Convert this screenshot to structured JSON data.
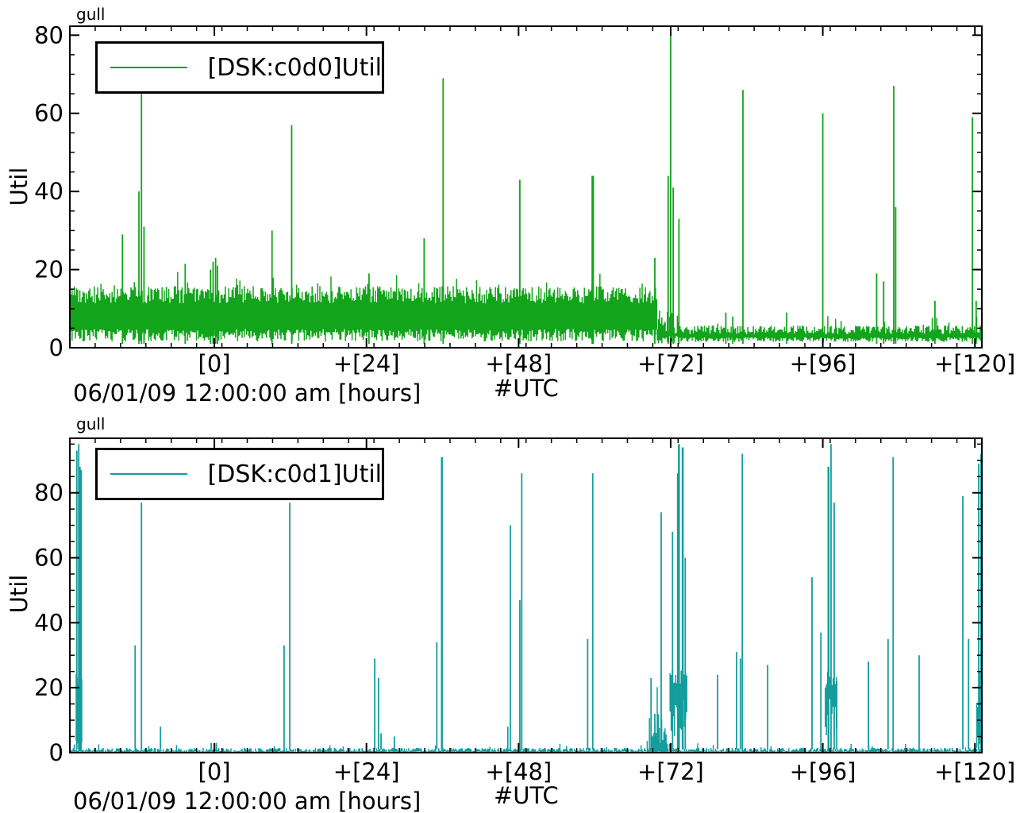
{
  "page": {
    "background": "#ffffff"
  },
  "chart_data": [
    {
      "type": "line",
      "title": "gull",
      "legend": "[DSK:c0d0]Util",
      "ylabel": "Util",
      "xlabel_utc": "#UTC",
      "xlabel_time": "06/01/09 12:00:00 am [hours]",
      "color": "#12a41b",
      "xlim": [
        -22.8,
        121.1
      ],
      "ylim": [
        0,
        82.3
      ],
      "xticks": [
        {
          "v": 0,
          "label": "[0]"
        },
        {
          "v": 24,
          "label": "+[24]"
        },
        {
          "v": 48,
          "label": "+[48]"
        },
        {
          "v": 72,
          "label": "+[72]"
        },
        {
          "v": 96,
          "label": "+[96]"
        },
        {
          "v": 120,
          "label": "+[120]"
        }
      ],
      "yticks": [
        {
          "v": 0,
          "label": "0"
        },
        {
          "v": 20,
          "label": "20"
        },
        {
          "v": 40,
          "label": "40"
        },
        {
          "v": 60,
          "label": "60"
        },
        {
          "v": 80,
          "label": "80"
        }
      ],
      "minor_y_step": 5,
      "bands": [
        {
          "x0": -22.8,
          "x1": 69.9,
          "lo": 3.2,
          "loVar": 1.6,
          "hi": 13.6,
          "hiVar": 2.2,
          "fringeP": 0.06,
          "fringeAmp": 4.5
        },
        {
          "x0": 69.9,
          "x1": 73.3,
          "lo": 2.2,
          "loVar": 1.2,
          "hi": 6.0,
          "hiVar": 3.5,
          "fringeP": 0.1,
          "fringeAmp": 5.0
        },
        {
          "x0": 73.3,
          "x1": 121.1,
          "lo": 2.1,
          "loVar": 0.6,
          "hi": 4.6,
          "hiVar": 1.1,
          "fringeP": 0.05,
          "fringeAmp": 3.5
        }
      ],
      "spikes": [
        [
          -14.5,
          29
        ],
        [
          -11.9,
          40
        ],
        [
          -11.5,
          65
        ],
        [
          -11.1,
          31
        ],
        [
          -4.6,
          21.5
        ],
        [
          -0.6,
          20
        ],
        [
          -0.2,
          22
        ],
        [
          0.2,
          23
        ],
        [
          0.5,
          21
        ],
        [
          9.1,
          30
        ],
        [
          12.2,
          57
        ],
        [
          24.4,
          19
        ],
        [
          33.1,
          28
        ],
        [
          36.1,
          69
        ],
        [
          48.2,
          43
        ],
        [
          59.7,
          44,
          3.2
        ],
        [
          69.5,
          23
        ],
        [
          71.6,
          44
        ],
        [
          72.0,
          80
        ],
        [
          72.4,
          41
        ],
        [
          73.3,
          33
        ],
        [
          80.7,
          9
        ],
        [
          81.8,
          8
        ],
        [
          83.4,
          66
        ],
        [
          90.3,
          9
        ],
        [
          96.0,
          60
        ],
        [
          104.5,
          19
        ],
        [
          105.6,
          17
        ],
        [
          107.2,
          67
        ],
        [
          107.5,
          36
        ],
        [
          113.7,
          12
        ],
        [
          119.6,
          59
        ],
        [
          120.2,
          12
        ]
      ]
    },
    {
      "type": "line",
      "title": "gull",
      "legend": "[DSK:c0d1]Util",
      "ylabel": "Util",
      "xlabel_utc": "#UTC",
      "xlabel_time": "06/01/09 12:00:00 am [hours]",
      "color": "#159d9d",
      "xlim": [
        -22.8,
        121.1
      ],
      "ylim": [
        0,
        96.8
      ],
      "xticks": [
        {
          "v": 0,
          "label": "[0]"
        },
        {
          "v": 24,
          "label": "+[24]"
        },
        {
          "v": 48,
          "label": "+[48]"
        },
        {
          "v": 72,
          "label": "+[72]"
        },
        {
          "v": 96,
          "label": "+[96]"
        },
        {
          "v": 120,
          "label": "+[120]"
        }
      ],
      "yticks": [
        {
          "v": 0,
          "label": "0"
        },
        {
          "v": 20,
          "label": "20"
        },
        {
          "v": 40,
          "label": "40"
        },
        {
          "v": 60,
          "label": "60"
        },
        {
          "v": 80,
          "label": "80"
        }
      ],
      "minor_y_step": 5,
      "bands": [
        {
          "x0": -22.8,
          "x1": 121.1,
          "lo": 0.15,
          "loVar": 0.25,
          "hi": 0.9,
          "hiVar": 0.6,
          "fringeP": 0.05,
          "fringeAmp": 1.8
        },
        {
          "x0": -21.8,
          "x1": -20.8,
          "lo": 2.0,
          "loVar": 2.0,
          "hi": 22.0,
          "hiVar": 4.0,
          "fringeP": 0.15,
          "fringeAmp": 3.0
        },
        {
          "x0": 68.3,
          "x1": 71.9,
          "lo": 0.4,
          "loVar": 0.4,
          "hi": 5.0,
          "hiVar": 4.5,
          "fringeP": 0.2,
          "fringeAmp": 14.0
        },
        {
          "x0": 71.9,
          "x1": 74.6,
          "lo": 11.0,
          "loVar": 6.0,
          "hi": 23.0,
          "hiVar": 2.5,
          "fringeP": 0.1,
          "fringeAmp": 2.0
        },
        {
          "x0": 96.4,
          "x1": 98.2,
          "lo": 11.0,
          "loVar": 6.0,
          "hi": 22.5,
          "hiVar": 2.5,
          "fringeP": 0.1,
          "fringeAmp": 2.0
        },
        {
          "x0": 120.3,
          "x1": 121.1,
          "lo": 3.0,
          "loVar": 2.5,
          "hi": 16.0,
          "hiVar": 8.0,
          "fringeP": 0.2,
          "fringeAmp": 6.0
        }
      ],
      "spikes": [
        [
          -21.7,
          93
        ],
        [
          -21.4,
          95
        ],
        [
          -21.2,
          88
        ],
        [
          -21.0,
          87
        ],
        [
          -12.5,
          33
        ],
        [
          -11.5,
          77
        ],
        [
          -8.5,
          8
        ],
        [
          -0.5,
          3
        ],
        [
          0.3,
          3
        ],
        [
          11.0,
          33
        ],
        [
          11.9,
          77
        ],
        [
          25.3,
          29
        ],
        [
          25.9,
          23
        ],
        [
          26.3,
          6
        ],
        [
          28.4,
          5
        ],
        [
          35.1,
          34
        ],
        [
          35.9,
          91,
          2.5
        ],
        [
          46.3,
          8
        ],
        [
          46.7,
          70
        ],
        [
          48.2,
          47
        ],
        [
          48.5,
          86
        ],
        [
          58.9,
          35
        ],
        [
          59.7,
          86
        ],
        [
          68.9,
          23
        ],
        [
          69.5,
          12
        ],
        [
          70.5,
          74
        ],
        [
          72.3,
          68
        ],
        [
          73.1,
          86
        ],
        [
          73.3,
          95,
          2.5
        ],
        [
          73.9,
          94,
          2.5
        ],
        [
          74.3,
          60
        ],
        [
          79.4,
          24
        ],
        [
          82.4,
          31
        ],
        [
          83.0,
          29
        ],
        [
          83.3,
          92
        ],
        [
          87.3,
          27
        ],
        [
          94.3,
          54
        ],
        [
          95.7,
          37
        ],
        [
          96.9,
          88,
          2.5
        ],
        [
          97.3,
          95
        ],
        [
          97.8,
          77
        ],
        [
          98.2,
          22
        ],
        [
          103.2,
          28
        ],
        [
          106.3,
          35
        ],
        [
          107.1,
          91
        ],
        [
          111.2,
          30
        ],
        [
          118.1,
          79
        ],
        [
          119.0,
          35
        ],
        [
          120.6,
          89
        ],
        [
          121.0,
          92,
          2.5
        ]
      ]
    }
  ]
}
